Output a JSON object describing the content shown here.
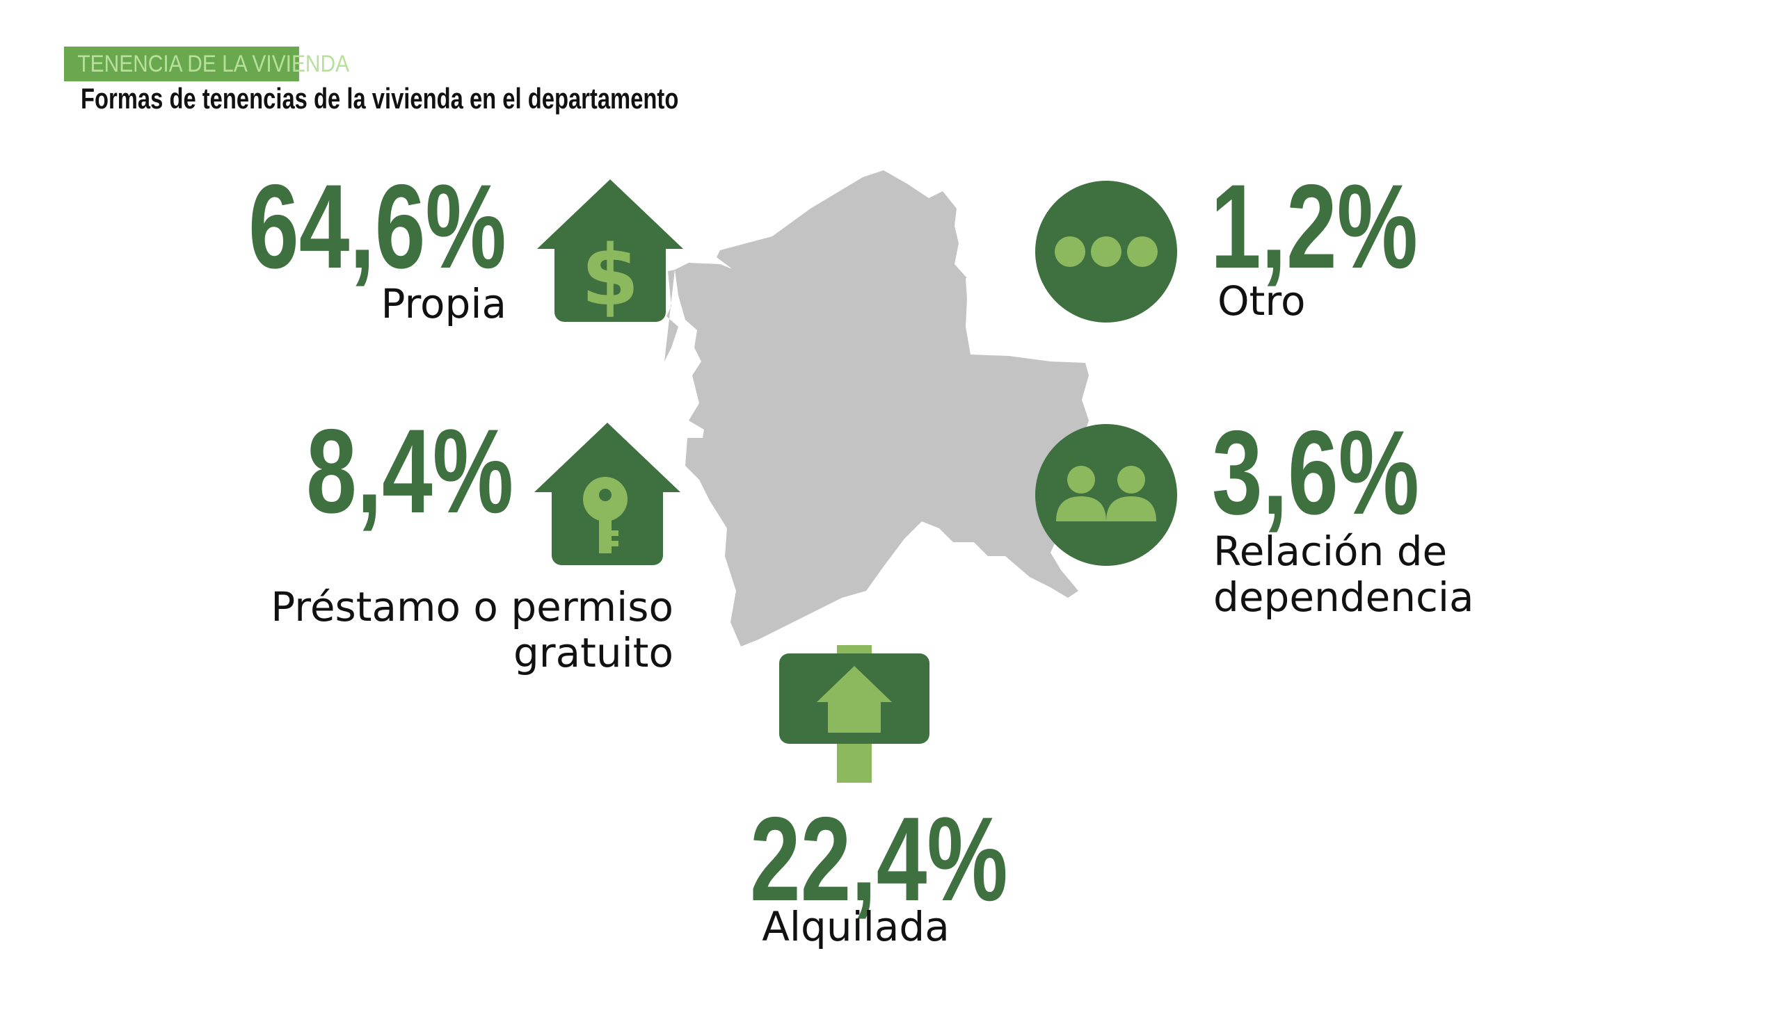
{
  "header": {
    "tag": "TENENCIA DE LA VIVIENDA",
    "subtitle": "Formas de tenencias de la vivienda en el departamento"
  },
  "colors": {
    "dark_green": "#3f7040",
    "light_green": "#8db95e",
    "map_gray": "#c3c3c3"
  },
  "items": {
    "propia": {
      "value": "64,6%",
      "label": "Propia",
      "icon": "house-dollar-icon"
    },
    "prestamo": {
      "value": "8,4%",
      "label_line1": "Préstamo o permiso",
      "label_line2": "gratuito",
      "icon": "house-key-icon"
    },
    "alquilada": {
      "value": "22,4%",
      "label": "Alquilada",
      "icon": "rent-sign-icon"
    },
    "otro": {
      "value": "1,2%",
      "label": "Otro",
      "icon": "more-dots-icon"
    },
    "relacion": {
      "value": "3,6%",
      "label_line1": "Relación de",
      "label_line2": "dependencia",
      "icon": "people-icon"
    }
  }
}
